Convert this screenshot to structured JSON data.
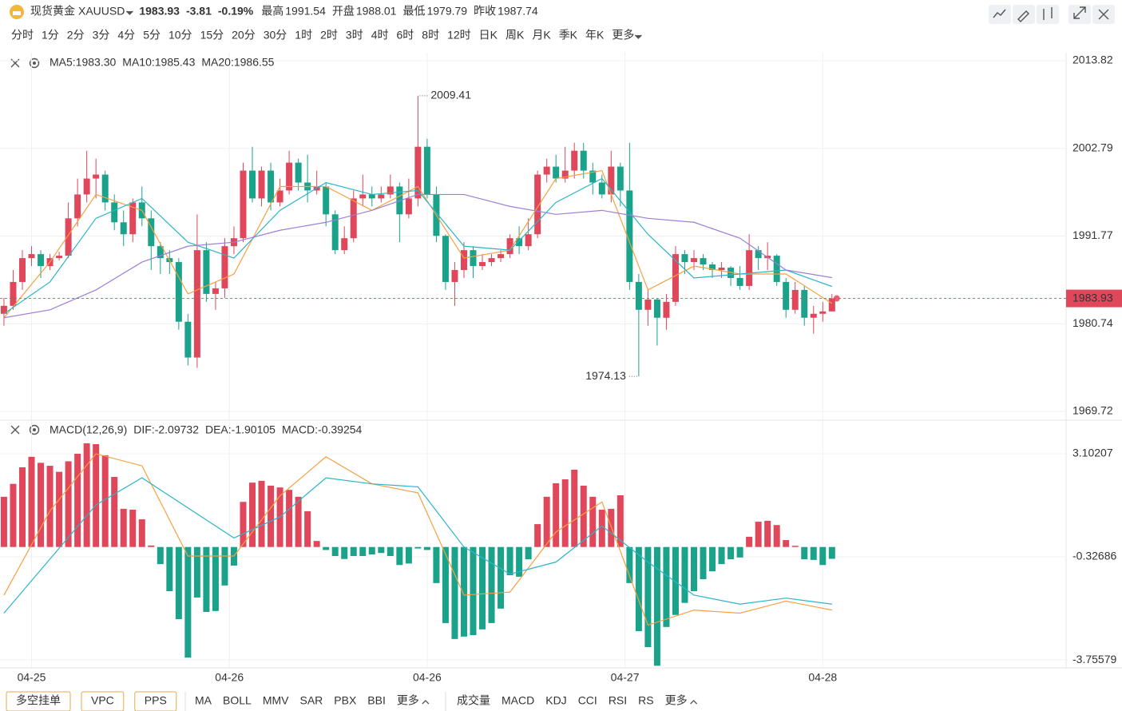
{
  "header": {
    "name": "现货黄金",
    "symbol": "XAUUSD",
    "price": 1983.93,
    "change": -3.81,
    "change_pct": "-0.19%",
    "stats": [
      {
        "label": "最高",
        "value": 1991.54,
        "color": "#e0475a"
      },
      {
        "label": "开盘",
        "value": 1988.01,
        "color": "#e0475a"
      },
      {
        "label": "最低",
        "value": 1979.79,
        "color": "#1aa38a"
      },
      {
        "label": "昨收",
        "value": 1987.74,
        "color": "#333333"
      }
    ]
  },
  "periods": [
    {
      "label": "分时"
    },
    {
      "label": "1分"
    },
    {
      "label": "2分"
    },
    {
      "label": "3分"
    },
    {
      "label": "4分"
    },
    {
      "label": "5分"
    },
    {
      "label": "10分"
    },
    {
      "label": "15分"
    },
    {
      "label": "20分"
    },
    {
      "label": "30分"
    },
    {
      "label": "1时",
      "active": true
    },
    {
      "label": "2时"
    },
    {
      "label": "3时"
    },
    {
      "label": "4时"
    },
    {
      "label": "6时"
    },
    {
      "label": "8时"
    },
    {
      "label": "12时"
    },
    {
      "label": "日K"
    },
    {
      "label": "周K"
    },
    {
      "label": "月K"
    },
    {
      "label": "季K"
    },
    {
      "label": "年K"
    },
    {
      "label": "更多"
    }
  ],
  "toolbar": {
    "buttons": [
      "多空挂单",
      "VPC",
      "PPS"
    ],
    "main_indicators": [
      "MA",
      "BOLL",
      "MMV",
      "SAR",
      "PBX",
      "BBI",
      "更多"
    ],
    "sub_indicators": [
      "成交量",
      "MACD",
      "KDJ",
      "CCI",
      "RSI",
      "RS",
      "更多"
    ]
  },
  "chart_data": [
    {
      "type": "candlestick",
      "up_color": "#e0475a",
      "down_color": "#1aa38a",
      "grid": true,
      "xlim": [
        -0.43,
        115.45
      ],
      "ylim": [
        1968.72,
        2014.72
      ],
      "yticks": [
        1969.72,
        1980.74,
        1991.77,
        2002.79,
        2013.82
      ],
      "xticks": [
        {
          "value": 3,
          "label": "04-25"
        },
        {
          "value": 24.5,
          "label": "04-26"
        },
        {
          "value": 46,
          "label": "04-26"
        },
        {
          "value": 67.5,
          "label": "04-27"
        },
        {
          "value": 89,
          "label": "04-28"
        }
      ],
      "last_price": 1983.93,
      "annotations": [
        {
          "text": 2009.41,
          "x": 45,
          "y": 2009.41
        },
        {
          "text": 1974.13,
          "x": 69,
          "y": 1974.13
        }
      ],
      "ohlc": [
        [
          1982,
          1984,
          1980.5,
          1983
        ],
        [
          1983,
          1987.5,
          1982.5,
          1986
        ],
        [
          1986,
          1990,
          1985,
          1989
        ],
        [
          1989,
          1990.5,
          1988,
          1989.5
        ],
        [
          1989.5,
          1990,
          1986.5,
          1988
        ],
        [
          1988,
          1989.5,
          1987.5,
          1989
        ],
        [
          1989,
          1989.8,
          1988.7,
          1989.3
        ],
        [
          1989.3,
          1996,
          1989,
          1994
        ],
        [
          1994,
          1999,
          1993,
          1997
        ],
        [
          1997,
          2002.5,
          1996,
          1999
        ],
        [
          1999,
          2001.5,
          1996.5,
          1999.5
        ],
        [
          1999.5,
          2000,
          1995,
          1996
        ],
        [
          1996,
          1997,
          1992.5,
          1993.5
        ],
        [
          1993.5,
          1995,
          1990.5,
          1992
        ],
        [
          1992,
          1996.5,
          1991,
          1996
        ],
        [
          1996,
          1998,
          1993,
          1994
        ],
        [
          1994,
          1995,
          1987.5,
          1990.5
        ],
        [
          1990.5,
          1991,
          1987,
          1989
        ],
        [
          1989,
          1990,
          1987,
          1988.5
        ],
        [
          1988.5,
          1989,
          1980,
          1981
        ],
        [
          1981,
          1982,
          1975.5,
          1976.5
        ],
        [
          1976.5,
          1994.5,
          1975.2,
          1990
        ],
        [
          1990,
          1991,
          1983.5,
          1984.5
        ],
        [
          1984.5,
          1986,
          1982.5,
          1985.2
        ],
        [
          1985.2,
          1991.5,
          1984,
          1990.5
        ],
        [
          1990.5,
          1993,
          1989.5,
          1991.5
        ],
        [
          1991.5,
          2001,
          1991,
          2000
        ],
        [
          2000,
          2003,
          1996,
          1996.5
        ],
        [
          1996.5,
          2000.5,
          1995.5,
          2000
        ],
        [
          2000,
          2001,
          1995,
          1996
        ],
        [
          1996,
          1999,
          1995.5,
          1997.5
        ],
        [
          1997.5,
          2002.5,
          1997,
          2001
        ],
        [
          2001,
          2001.5,
          1997.5,
          1998.5
        ],
        [
          1998.5,
          2002,
          1996,
          1997.5
        ],
        [
          1997.5,
          2000,
          1997,
          1998
        ],
        [
          1998,
          1998.5,
          1993,
          1994.5
        ],
        [
          1994.5,
          1995,
          1989.5,
          1990
        ],
        [
          1990,
          1993,
          1989.5,
          1991.5
        ],
        [
          1991.5,
          1997.5,
          1991,
          1996.5
        ],
        [
          1996.5,
          1999.5,
          1995.5,
          1997
        ],
        [
          1997,
          1998,
          1995.5,
          1996.5
        ],
        [
          1996.5,
          1998,
          1996,
          1997
        ],
        [
          1997,
          1999.5,
          1996.5,
          1998
        ],
        [
          1998,
          1998.5,
          1991,
          1994.5
        ],
        [
          1994.5,
          1999,
          1994,
          1996.5
        ],
        [
          1996.5,
          2009.41,
          1995.5,
          2003
        ],
        [
          2003,
          2004,
          1996.5,
          1997
        ],
        [
          1997,
          1998,
          1991,
          1991.8
        ],
        [
          1991.8,
          1992,
          1985,
          1986
        ],
        [
          1986,
          1988.5,
          1983,
          1987.5
        ],
        [
          1987.5,
          1991,
          1986.5,
          1990
        ],
        [
          1990,
          1990.5,
          1986.5,
          1988
        ],
        [
          1988,
          1989.5,
          1987.5,
          1988.5
        ],
        [
          1988.5,
          1989.5,
          1988,
          1989
        ],
        [
          1989,
          1990,
          1988.5,
          1989.5
        ],
        [
          1989.5,
          1992,
          1989,
          1991.5
        ],
        [
          1991.5,
          1993,
          1989.5,
          1990.5
        ],
        [
          1990.5,
          1994,
          1990,
          1992
        ],
        [
          1992,
          2000,
          1991.5,
          1999.5
        ],
        [
          1999.5,
          2001.5,
          1998.5,
          2000.5
        ],
        [
          2000.5,
          2002,
          1998.5,
          1999
        ],
        [
          1999,
          2003,
          1998.5,
          2000
        ],
        [
          2000,
          2003.5,
          1999,
          2002.5
        ],
        [
          2002.5,
          2003.5,
          1999,
          2000
        ],
        [
          2000,
          2001,
          1997,
          1998.5
        ],
        [
          1998.5,
          1999.5,
          1996.5,
          1997
        ],
        [
          1997,
          2002.5,
          1996,
          2000.5
        ],
        [
          2000.5,
          2001,
          1995.5,
          1997.5
        ],
        [
          1997.5,
          2003.5,
          1985,
          1986
        ],
        [
          1986,
          1987,
          1974.13,
          1982.5
        ],
        [
          1982.5,
          1985,
          1980.5,
          1983.8
        ],
        [
          1983.8,
          1984,
          1978,
          1981.5
        ],
        [
          1981.5,
          1984.5,
          1980,
          1983.5
        ],
        [
          1983.5,
          1990.5,
          1983,
          1989.5
        ],
        [
          1989.5,
          1990,
          1987,
          1988.5
        ],
        [
          1988.5,
          1990,
          1987.5,
          1989
        ],
        [
          1989,
          1989.5,
          1987.5,
          1988.2
        ],
        [
          1988.2,
          1988.5,
          1986.5,
          1987.5
        ],
        [
          1987.5,
          1988.5,
          1986.5,
          1987.8
        ],
        [
          1987.8,
          1988,
          1985.5,
          1986.5
        ],
        [
          1986.5,
          1988,
          1985,
          1985.5
        ],
        [
          1985.5,
          1992,
          1985,
          1990
        ],
        [
          1990,
          1990.5,
          1987.5,
          1989
        ],
        [
          1989,
          1991,
          1987.5,
          1989.3
        ],
        [
          1989.3,
          1989.5,
          1985.5,
          1986
        ],
        [
          1986,
          1986.5,
          1981.5,
          1982.5
        ],
        [
          1982.5,
          1986,
          1982,
          1985
        ],
        [
          1985,
          1985.5,
          1980.5,
          1981.5
        ],
        [
          1981.5,
          1983,
          1979.5,
          1982
        ],
        [
          1982,
          1983.5,
          1981,
          1982.3
        ],
        [
          1982.3,
          1984.5,
          1982.3,
          1983.93
        ]
      ],
      "series": [
        {
          "name": "MA5:1983.30",
          "color": "#f5a042",
          "x": [
            0,
            5,
            10,
            15,
            20,
            25,
            30,
            35,
            40,
            45,
            50,
            55,
            60,
            65,
            70,
            75,
            80,
            85,
            90
          ],
          "values": [
            1981.5,
            1988.5,
            1997,
            1995,
            1984.5,
            1987,
            1998,
            1998,
            1995,
            1998,
            1989,
            1990,
            1999,
            2000,
            1985,
            1988,
            1987,
            1987,
            1983.3
          ]
        },
        {
          "name": "MA10:1985.43",
          "color": "#2bb5c9",
          "x": [
            0,
            5,
            10,
            15,
            20,
            25,
            30,
            35,
            40,
            45,
            50,
            55,
            60,
            65,
            70,
            75,
            80,
            85,
            90
          ],
          "values": [
            1982,
            1986,
            1994,
            1996.5,
            1991,
            1989,
            1995,
            1998.5,
            1997,
            1997.5,
            1990.5,
            1990,
            1996,
            1999,
            1992,
            1986.5,
            1987,
            1987.5,
            1985.43
          ]
        },
        {
          "name": "MA20:1986.55",
          "color": "#9b7fd8",
          "x": [
            0,
            5,
            10,
            15,
            20,
            25,
            30,
            35,
            40,
            45,
            50,
            55,
            60,
            65,
            70,
            75,
            80,
            85,
            90
          ],
          "values": [
            1981.5,
            1982.5,
            1985,
            1988.5,
            1990.5,
            1991,
            1992.5,
            1993.5,
            1995,
            1997,
            1997,
            1995.5,
            1994.5,
            1995,
            1994,
            1993.5,
            1991.5,
            1987.5,
            1986.55
          ]
        }
      ]
    },
    {
      "type": "macd",
      "title": "MACD(12,26,9)",
      "grid": true,
      "xlim": [
        -0.43,
        115.45
      ],
      "ylim": [
        -4.02,
        4.19
      ],
      "yticks": [
        3.10207,
        -0.32686,
        -3.75579
      ],
      "histogram": {
        "name": "MACD:-0.39254",
        "color": "#9d7ad6",
        "up_color": "#e0475a",
        "down_color": "#1aa38a",
        "values": [
          1.67,
          2.1,
          2.65,
          3.0,
          2.8,
          2.7,
          2.5,
          2.85,
          3.1,
          3.45,
          3.42,
          3.05,
          2.33,
          1.27,
          1.24,
          0.92,
          0.05,
          -0.57,
          -1.47,
          -2.4,
          -3.68,
          -1.68,
          -2.16,
          -2.13,
          -1.28,
          -0.62,
          1.5,
          2.14,
          2.2,
          2.04,
          1.98,
          1.9,
          1.67,
          1.19,
          0.2,
          -0.1,
          -0.3,
          -0.4,
          -0.3,
          -0.3,
          -0.25,
          -0.2,
          -0.3,
          -0.6,
          -0.55,
          -0.05,
          -0.1,
          -1.2,
          -2.53,
          -3.06,
          -2.98,
          -2.93,
          -2.74,
          -2.53,
          -2.05,
          -0.94,
          -0.99,
          -0.41,
          0.76,
          1.67,
          2.12,
          2.25,
          2.57,
          2.04,
          1.67,
          1.24,
          1.27,
          1.72,
          -1.2,
          -2.8,
          -3.33,
          -3.95,
          -2.66,
          -2.26,
          -1.86,
          -1.47,
          -1.07,
          -0.81,
          -0.57,
          -0.41,
          -0.35,
          0.34,
          0.84,
          0.87,
          0.73,
          0.23,
          0.04,
          -0.41,
          -0.43,
          -0.6,
          -0.39254
        ]
      },
      "series": [
        {
          "name": "DIF:-2.09732",
          "color": "#f5a042",
          "x": [
            0,
            5,
            10,
            15,
            20,
            25,
            30,
            35,
            40,
            45,
            50,
            55,
            60,
            65,
            70,
            75,
            80,
            85,
            90
          ],
          "values": [
            -1.6,
            1.2,
            3.1,
            2.7,
            -0.3,
            -0.3,
            1.7,
            3.0,
            2.1,
            1.8,
            -1.6,
            -1.5,
            0.5,
            1.5,
            -2.6,
            -2.1,
            -2.2,
            -1.8,
            -2.09732
          ]
        },
        {
          "name": "DEA:-1.90105",
          "color": "#2bb5c9",
          "x": [
            0,
            5,
            10,
            15,
            20,
            25,
            30,
            35,
            40,
            45,
            50,
            55,
            60,
            65,
            70,
            75,
            80,
            85,
            90
          ],
          "values": [
            -2.2,
            -0.4,
            1.4,
            2.3,
            1.3,
            0.3,
            1.0,
            2.3,
            2.1,
            2.0,
            0.0,
            -0.9,
            -0.5,
            0.7,
            -0.5,
            -1.6,
            -1.9,
            -1.7,
            -1.90105
          ]
        }
      ]
    }
  ]
}
